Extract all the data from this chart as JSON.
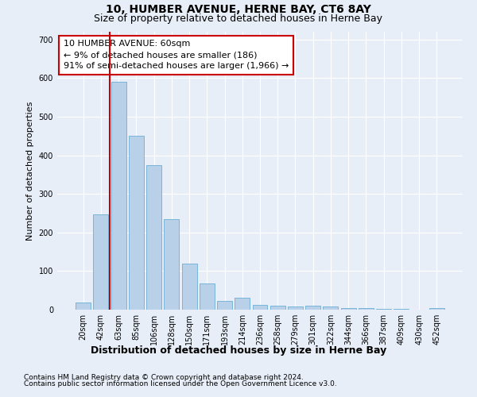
{
  "title": "10, HUMBER AVENUE, HERNE BAY, CT6 8AY",
  "subtitle": "Size of property relative to detached houses in Herne Bay",
  "xlabel": "Distribution of detached houses by size in Herne Bay",
  "ylabel": "Number of detached properties",
  "categories": [
    "20sqm",
    "42sqm",
    "63sqm",
    "85sqm",
    "106sqm",
    "128sqm",
    "150sqm",
    "171sqm",
    "193sqm",
    "214sqm",
    "236sqm",
    "258sqm",
    "279sqm",
    "301sqm",
    "322sqm",
    "344sqm",
    "366sqm",
    "387sqm",
    "409sqm",
    "430sqm",
    "452sqm"
  ],
  "values": [
    18,
    247,
    590,
    450,
    375,
    235,
    120,
    68,
    22,
    30,
    13,
    10,
    8,
    10,
    8,
    5,
    5,
    3,
    3,
    0,
    5
  ],
  "bar_color": "#b8d0e8",
  "bar_edge_color": "#6aaed6",
  "property_line_color": "#cc0000",
  "annotation_text": "10 HUMBER AVENUE: 60sqm\n← 9% of detached houses are smaller (186)\n91% of semi-detached houses are larger (1,966) →",
  "annotation_box_facecolor": "#ffffff",
  "annotation_box_edgecolor": "#cc0000",
  "ylim": [
    0,
    720
  ],
  "yticks": [
    0,
    100,
    200,
    300,
    400,
    500,
    600,
    700
  ],
  "background_color": "#e8eef8",
  "plot_background_color": "#e8eef8",
  "grid_color": "#ffffff",
  "footer_line1": "Contains HM Land Registry data © Crown copyright and database right 2024.",
  "footer_line2": "Contains public sector information licensed under the Open Government Licence v3.0.",
  "title_fontsize": 10,
  "subtitle_fontsize": 9,
  "xlabel_fontsize": 9,
  "ylabel_fontsize": 8,
  "tick_fontsize": 7,
  "annotation_fontsize": 8,
  "footer_fontsize": 6.5
}
